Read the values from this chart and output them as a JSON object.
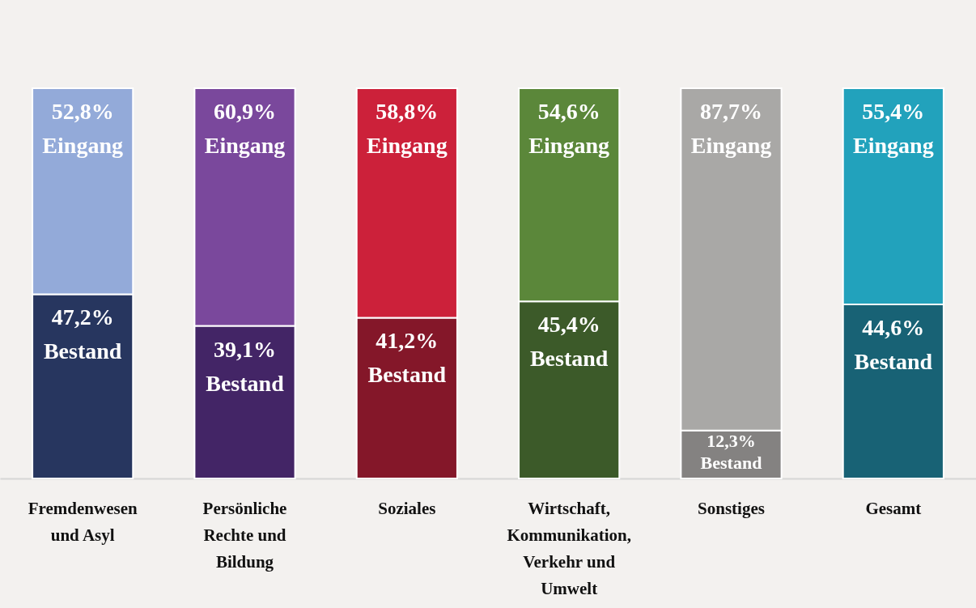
{
  "chart_data": {
    "type": "bar",
    "stacked": true,
    "categories": [
      "Fremdenwesen und Asyl",
      "Persönliche Rechte und Bildung",
      "Soziales",
      "Wirtschaft, Kommunikation, Verkehr und Umwelt",
      "Sonstiges",
      "Gesamt"
    ],
    "series": [
      {
        "name": "Bestand",
        "values": [
          47.2,
          39.1,
          41.2,
          45.4,
          12.3,
          44.6
        ],
        "colors": [
          "#27365f",
          "#432566",
          "#841729",
          "#3c5a29",
          "#848281",
          "#186275"
        ],
        "value_labels": [
          "47,2%",
          "39,1%",
          "41,2%",
          "45,4%",
          "12,3%",
          "44,6%"
        ]
      },
      {
        "name": "Eingang",
        "values": [
          52.8,
          60.9,
          58.8,
          54.6,
          87.7,
          55.4
        ],
        "colors": [
          "#93aad9",
          "#7a489c",
          "#cc213a",
          "#5b873a",
          "#a9a8a6",
          "#22a2bc"
        ],
        "value_labels": [
          "52,8%",
          "60,9%",
          "58,8%",
          "54,6%",
          "87,7%",
          "55,4%"
        ]
      }
    ],
    "data_labels": false
  }
}
